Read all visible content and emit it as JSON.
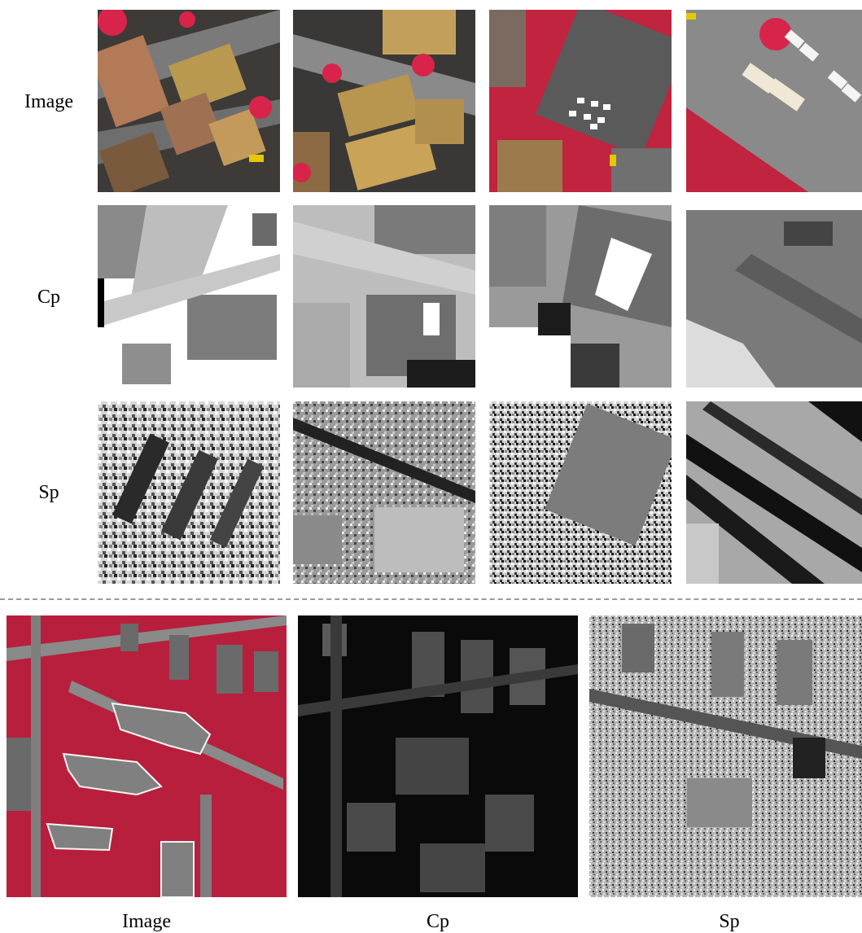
{
  "top_grid": {
    "row_labels": [
      "Image",
      "Cp",
      "Sp"
    ],
    "columns": 4
  },
  "bottom_panel": {
    "labels": [
      "Image",
      "Cp",
      "Sp"
    ]
  },
  "colors": {
    "vegetation": "#d8244a",
    "roof": "#b8934a",
    "road": "#8c8c8c",
    "map_dark": "#111111",
    "map_light": "#f2f2f2"
  }
}
